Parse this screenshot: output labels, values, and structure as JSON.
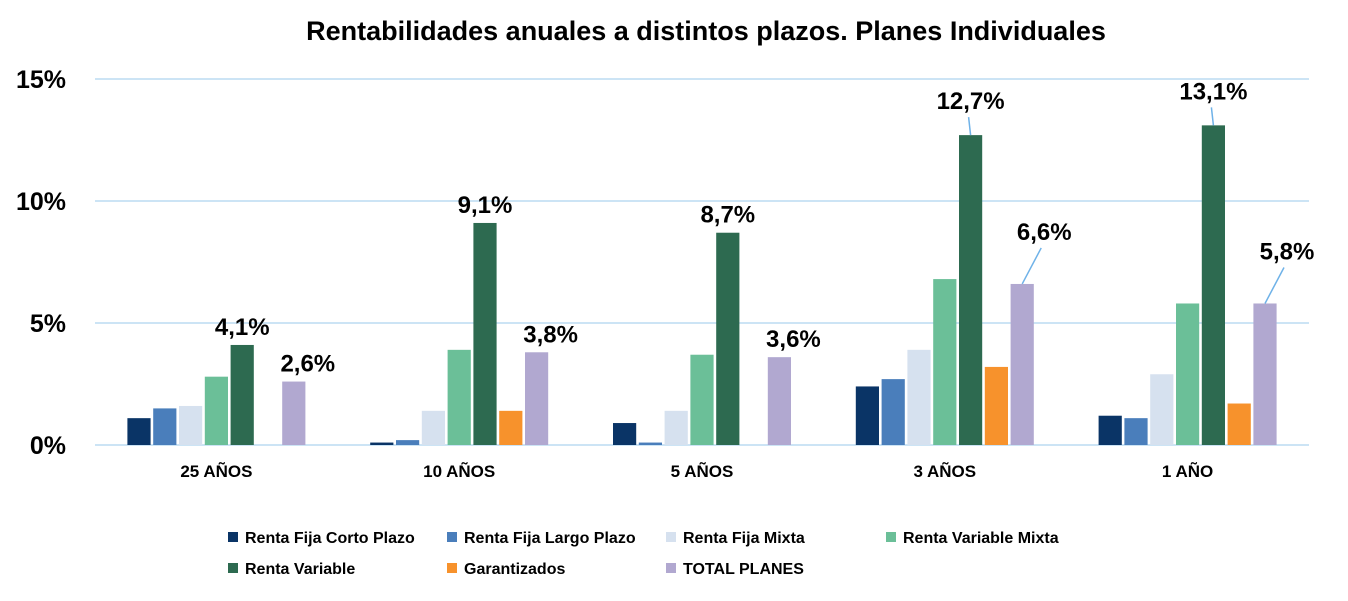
{
  "chart_data": {
    "type": "bar",
    "title": "Rentabilidades anuales a distintos plazos. Planes Individuales",
    "xlabel": "",
    "ylabel": "",
    "ylim": [
      0,
      15
    ],
    "yticks": [
      0,
      5,
      10,
      15
    ],
    "ytick_labels": [
      "0%",
      "5%",
      "10%",
      "15%"
    ],
    "grid": true,
    "legend_position": "bottom",
    "categories": [
      "25 AÑOS",
      "10 AÑOS",
      "5 AÑOS",
      "3 AÑOS",
      "1 AÑO"
    ],
    "series": [
      {
        "name": "Renta Fija Corto Plazo",
        "color": "#0a3466",
        "values": [
          1.1,
          0.1,
          0.9,
          2.4,
          1.2
        ]
      },
      {
        "name": "Renta Fija Largo Plazo",
        "color": "#4a7ebb",
        "values": [
          1.5,
          0.2,
          0.1,
          2.7,
          1.1
        ]
      },
      {
        "name": "Renta Fija Mixta",
        "color": "#d6e1ef",
        "values": [
          1.6,
          1.4,
          1.4,
          3.9,
          2.9
        ]
      },
      {
        "name": "Renta Variable Mixta",
        "color": "#6bbf98",
        "values": [
          2.8,
          3.9,
          3.7,
          6.8,
          5.8
        ]
      },
      {
        "name": "Renta Variable",
        "color": "#2d6a50",
        "values": [
          4.1,
          9.1,
          8.7,
          12.7,
          13.1
        ]
      },
      {
        "name": "Garantizados",
        "color": "#f7922c",
        "values": [
          null,
          1.4,
          null,
          3.2,
          1.7
        ]
      },
      {
        "name": "TOTAL PLANES",
        "color": "#b1a8d0",
        "values": [
          2.6,
          3.8,
          3.6,
          6.6,
          5.8
        ]
      }
    ],
    "data_labels": [
      {
        "series": "Renta Variable",
        "category": "25 AÑOS",
        "text": "4,1%"
      },
      {
        "series": "TOTAL PLANES",
        "category": "25 AÑOS",
        "text": "2,6%"
      },
      {
        "series": "Renta Variable",
        "category": "10 AÑOS",
        "text": "9,1%"
      },
      {
        "series": "TOTAL PLANES",
        "category": "10 AÑOS",
        "text": "3,8%"
      },
      {
        "series": "Renta Variable",
        "category": "5 AÑOS",
        "text": "8,7%"
      },
      {
        "series": "TOTAL PLANES",
        "category": "5 AÑOS",
        "text": "3,6%"
      },
      {
        "series": "Renta Variable",
        "category": "3 AÑOS",
        "text": "12,7%"
      },
      {
        "series": "TOTAL PLANES",
        "category": "3 AÑOS",
        "text": "6,6%"
      },
      {
        "series": "Renta Variable",
        "category": "1 AÑO",
        "text": "13,1%"
      },
      {
        "series": "TOTAL PLANES",
        "category": "1 AÑO",
        "text": "5,8%"
      }
    ]
  }
}
